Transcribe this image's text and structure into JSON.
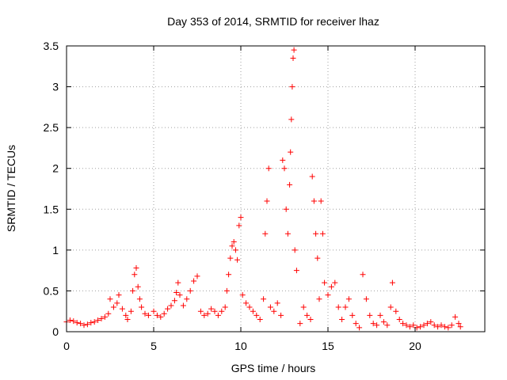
{
  "chart_data": {
    "type": "scatter",
    "title": "Day 353 of 2014, SRMTID for receiver lhaz",
    "xlabel": "GPS time / hours",
    "ylabel": "SRMTID / TECUs",
    "xlim": [
      0,
      24
    ],
    "ylim": [
      0,
      3.5
    ],
    "x_ticks": [
      0,
      5,
      10,
      15,
      20
    ],
    "x_tick_labels": [
      "0",
      "5",
      "10",
      "15",
      "20"
    ],
    "y_ticks": [
      0,
      0.5,
      1,
      1.5,
      2,
      2.5,
      3,
      3.5
    ],
    "y_tick_labels": [
      "0",
      "0.5",
      "1",
      "1.5",
      "2",
      "2.5",
      "3",
      "3.5"
    ],
    "grid": true,
    "marker": "plus",
    "color": "#ff0000",
    "series": [
      {
        "name": "lhaz",
        "points": [
          [
            0.0,
            0.12
          ],
          [
            0.2,
            0.14
          ],
          [
            0.4,
            0.13
          ],
          [
            0.6,
            0.11
          ],
          [
            0.8,
            0.1
          ],
          [
            1.0,
            0.08
          ],
          [
            1.2,
            0.09
          ],
          [
            1.4,
            0.11
          ],
          [
            1.6,
            0.12
          ],
          [
            1.8,
            0.14
          ],
          [
            2.0,
            0.16
          ],
          [
            2.2,
            0.18
          ],
          [
            2.4,
            0.22
          ],
          [
            2.5,
            0.4
          ],
          [
            2.7,
            0.3
          ],
          [
            2.9,
            0.35
          ],
          [
            3.0,
            0.45
          ],
          [
            3.2,
            0.28
          ],
          [
            3.4,
            0.2
          ],
          [
            3.5,
            0.15
          ],
          [
            3.7,
            0.25
          ],
          [
            3.8,
            0.5
          ],
          [
            3.9,
            0.7
          ],
          [
            4.0,
            0.78
          ],
          [
            4.1,
            0.55
          ],
          [
            4.2,
            0.4
          ],
          [
            4.3,
            0.3
          ],
          [
            4.5,
            0.22
          ],
          [
            4.7,
            0.2
          ],
          [
            5.0,
            0.25
          ],
          [
            5.2,
            0.2
          ],
          [
            5.4,
            0.18
          ],
          [
            5.6,
            0.22
          ],
          [
            5.8,
            0.28
          ],
          [
            6.0,
            0.32
          ],
          [
            6.2,
            0.38
          ],
          [
            6.3,
            0.48
          ],
          [
            6.4,
            0.6
          ],
          [
            6.5,
            0.45
          ],
          [
            6.7,
            0.32
          ],
          [
            6.9,
            0.4
          ],
          [
            7.1,
            0.5
          ],
          [
            7.3,
            0.62
          ],
          [
            7.5,
            0.68
          ],
          [
            7.7,
            0.25
          ],
          [
            7.9,
            0.2
          ],
          [
            8.1,
            0.22
          ],
          [
            8.3,
            0.28
          ],
          [
            8.5,
            0.25
          ],
          [
            8.7,
            0.2
          ],
          [
            8.9,
            0.25
          ],
          [
            9.1,
            0.3
          ],
          [
            9.2,
            0.5
          ],
          [
            9.3,
            0.7
          ],
          [
            9.4,
            0.9
          ],
          [
            9.5,
            1.05
          ],
          [
            9.6,
            1.1
          ],
          [
            9.7,
            1.0
          ],
          [
            9.8,
            0.88
          ],
          [
            9.9,
            1.3
          ],
          [
            10.0,
            1.4
          ],
          [
            10.1,
            0.45
          ],
          [
            10.3,
            0.35
          ],
          [
            10.5,
            0.3
          ],
          [
            10.7,
            0.25
          ],
          [
            10.9,
            0.2
          ],
          [
            11.1,
            0.15
          ],
          [
            11.3,
            0.4
          ],
          [
            11.4,
            1.2
          ],
          [
            11.5,
            1.6
          ],
          [
            11.6,
            2.0
          ],
          [
            11.7,
            0.3
          ],
          [
            11.9,
            0.25
          ],
          [
            12.1,
            0.35
          ],
          [
            12.3,
            0.2
          ],
          [
            12.4,
            2.1
          ],
          [
            12.5,
            2.0
          ],
          [
            12.6,
            1.5
          ],
          [
            12.7,
            1.2
          ],
          [
            12.8,
            1.8
          ],
          [
            12.85,
            2.2
          ],
          [
            12.9,
            2.6
          ],
          [
            12.95,
            3.0
          ],
          [
            13.0,
            3.35
          ],
          [
            13.05,
            3.45
          ],
          [
            13.1,
            1.0
          ],
          [
            13.2,
            0.75
          ],
          [
            13.4,
            0.1
          ],
          [
            13.6,
            0.3
          ],
          [
            13.8,
            0.2
          ],
          [
            14.0,
            0.15
          ],
          [
            14.1,
            1.9
          ],
          [
            14.2,
            1.6
          ],
          [
            14.3,
            1.2
          ],
          [
            14.4,
            0.9
          ],
          [
            14.5,
            0.4
          ],
          [
            14.6,
            1.6
          ],
          [
            14.7,
            1.2
          ],
          [
            14.8,
            0.6
          ],
          [
            15.0,
            0.45
          ],
          [
            15.2,
            0.55
          ],
          [
            15.4,
            0.6
          ],
          [
            15.6,
            0.3
          ],
          [
            15.8,
            0.15
          ],
          [
            16.0,
            0.3
          ],
          [
            16.2,
            0.4
          ],
          [
            16.4,
            0.2
          ],
          [
            16.6,
            0.1
          ],
          [
            16.8,
            0.05
          ],
          [
            17.0,
            0.7
          ],
          [
            17.2,
            0.4
          ],
          [
            17.4,
            0.2
          ],
          [
            17.6,
            0.1
          ],
          [
            17.8,
            0.08
          ],
          [
            18.0,
            0.2
          ],
          [
            18.2,
            0.12
          ],
          [
            18.4,
            0.08
          ],
          [
            18.6,
            0.3
          ],
          [
            18.7,
            0.6
          ],
          [
            18.9,
            0.25
          ],
          [
            19.1,
            0.15
          ],
          [
            19.3,
            0.1
          ],
          [
            19.5,
            0.08
          ],
          [
            19.7,
            0.06
          ],
          [
            19.9,
            0.08
          ],
          [
            20.1,
            0.05
          ],
          [
            20.3,
            0.06
          ],
          [
            20.5,
            0.08
          ],
          [
            20.7,
            0.1
          ],
          [
            20.9,
            0.12
          ],
          [
            21.1,
            0.08
          ],
          [
            21.3,
            0.06
          ],
          [
            21.5,
            0.08
          ],
          [
            21.7,
            0.06
          ],
          [
            21.9,
            0.05
          ],
          [
            22.1,
            0.08
          ],
          [
            22.3,
            0.18
          ],
          [
            22.5,
            0.1
          ],
          [
            22.6,
            0.06
          ]
        ]
      }
    ]
  }
}
